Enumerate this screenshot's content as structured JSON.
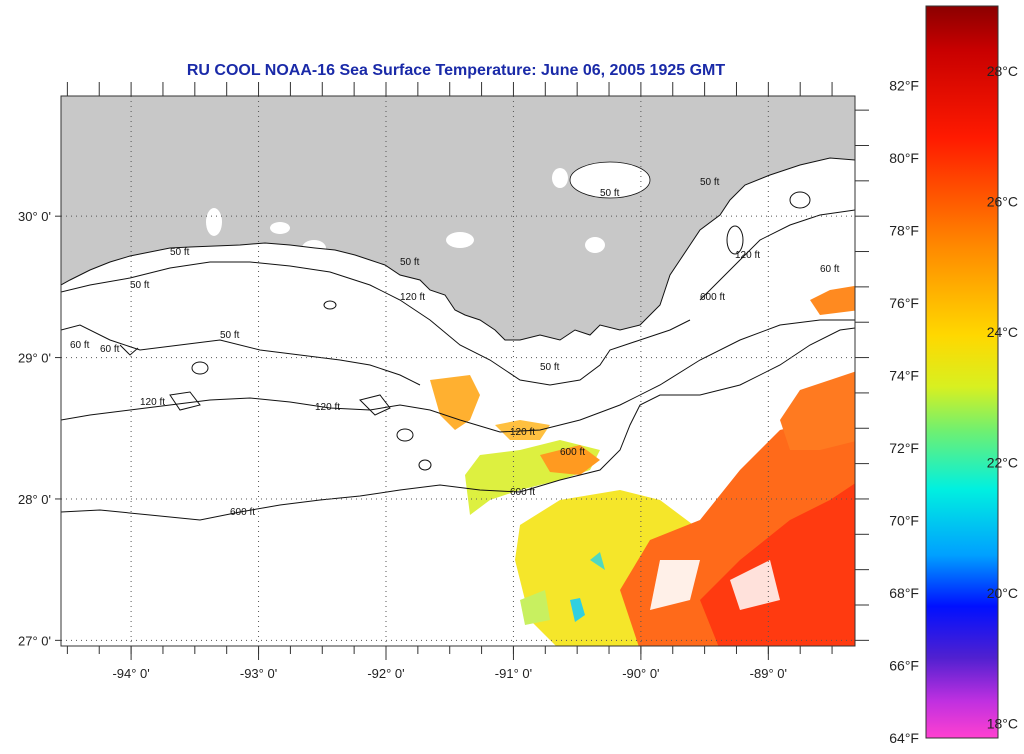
{
  "title": "RU COOL  NOAA-16  Sea Surface Temperature:  June 06, 2005 1925 GMT",
  "map": {
    "lon_range": [
      -94.55,
      -88.32
    ],
    "lat_range": [
      26.96,
      30.85
    ],
    "lat_ticks": [
      {
        "value": 30,
        "label": "30° 0'"
      },
      {
        "value": 29,
        "label": "29° 0'"
      },
      {
        "value": 28,
        "label": "28° 0'"
      },
      {
        "value": 27,
        "label": "27° 0'"
      }
    ],
    "lon_ticks": [
      {
        "value": -94,
        "label": "-94° 0'"
      },
      {
        "value": -93,
        "label": "-93° 0'"
      },
      {
        "value": -92,
        "label": "-92° 0'"
      },
      {
        "value": -91,
        "label": "-91° 0'"
      },
      {
        "value": -90,
        "label": "-90° 0'"
      },
      {
        "value": -89,
        "label": "-89° 0'"
      }
    ],
    "grid": "dotted",
    "land_color": "#c8c8c8",
    "contour_labels": [
      "50 ft",
      "50 ft",
      "50 ft",
      "50 ft",
      "50 ft",
      "50 ft",
      "50 ft",
      "60 ft",
      "60 ft",
      "60 ft",
      "120 ft",
      "120 ft",
      "120 ft",
      "120 ft",
      "120 ft",
      "600 ft",
      "600 ft",
      "600 ft",
      "600 ft"
    ]
  },
  "colorbar": {
    "range_f": [
      64,
      84.2
    ],
    "fahrenheit_labels": [
      {
        "value": 82,
        "label": "82°F"
      },
      {
        "value": 80,
        "label": "80°F"
      },
      {
        "value": 78,
        "label": "78°F"
      },
      {
        "value": 76,
        "label": "76°F"
      },
      {
        "value": 74,
        "label": "74°F"
      },
      {
        "value": 72,
        "label": "72°F"
      },
      {
        "value": 70,
        "label": "70°F"
      },
      {
        "value": 68,
        "label": "68°F"
      },
      {
        "value": 66,
        "label": "66°F"
      },
      {
        "value": 64,
        "label": "64°F"
      }
    ],
    "celsius_labels": [
      {
        "value": 28,
        "label": "28°C"
      },
      {
        "value": 26,
        "label": "26°C"
      },
      {
        "value": 24,
        "label": "24°C"
      },
      {
        "value": 22,
        "label": "22°C"
      },
      {
        "value": 20,
        "label": "20°C"
      },
      {
        "value": 18,
        "label": "18°C"
      }
    ],
    "colors": [
      "#8b0000",
      "#ff0000",
      "#ff8c00",
      "#ffff00",
      "#00ffff",
      "#0000ff",
      "#a050ff",
      "#ff40c0"
    ]
  }
}
